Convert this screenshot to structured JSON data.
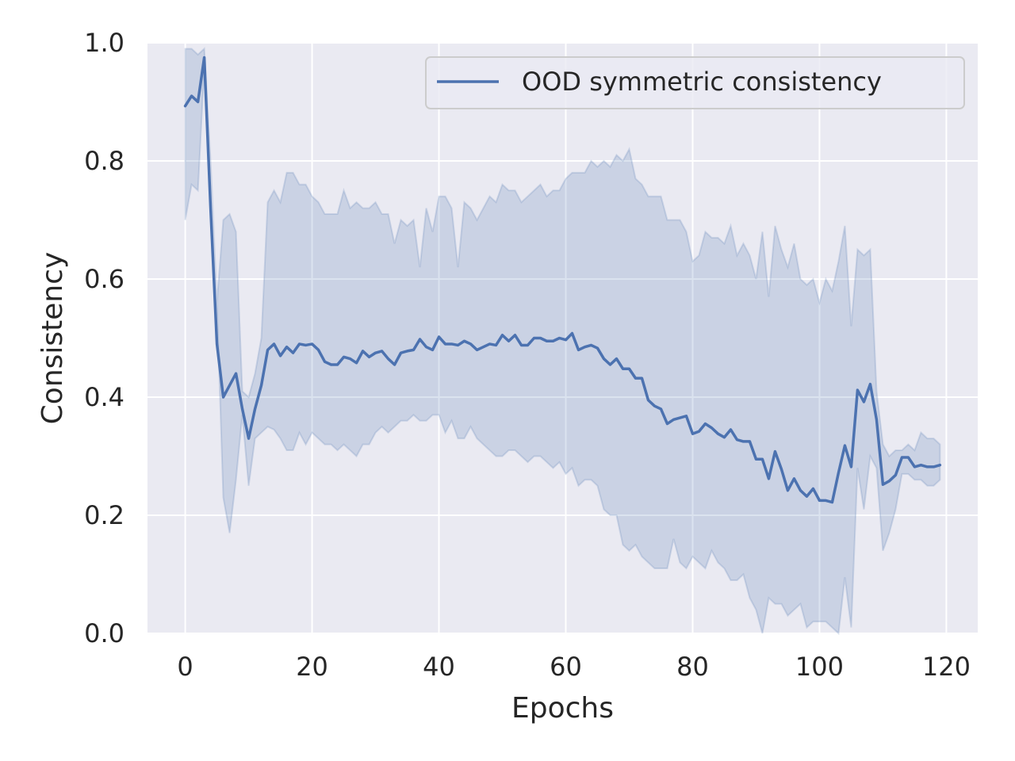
{
  "chart_data": {
    "type": "line",
    "xlabel": "Epochs",
    "ylabel": "Consistency",
    "xlim": [
      -5.95,
      124.95
    ],
    "ylim": [
      0.0,
      1.0
    ],
    "xticks": [
      0,
      20,
      40,
      60,
      80,
      100,
      120
    ],
    "yticks": [
      0.0,
      0.2,
      0.4,
      0.6,
      0.8,
      1.0
    ],
    "xtick_labels": [
      "0",
      "20",
      "40",
      "60",
      "80",
      "100",
      "120"
    ],
    "ytick_labels": [
      "0.0",
      "0.2",
      "0.4",
      "0.6",
      "0.8",
      "1.0"
    ],
    "grid": true,
    "legend_position": "top-right",
    "colors": {
      "background": "#eaeaf2",
      "grid": "#ffffff",
      "line": "#4c72b0",
      "band": "#4c72b0"
    },
    "series": [
      {
        "name": "OOD symmetric consistency",
        "x": [
          0,
          1,
          2,
          3,
          4,
          5,
          6,
          7,
          8,
          9,
          10,
          11,
          12,
          13,
          14,
          15,
          16,
          17,
          18,
          19,
          20,
          21,
          22,
          23,
          24,
          25,
          26,
          27,
          28,
          29,
          30,
          31,
          32,
          33,
          34,
          35,
          36,
          37,
          38,
          39,
          40,
          41,
          42,
          43,
          44,
          45,
          46,
          47,
          48,
          49,
          50,
          51,
          52,
          53,
          54,
          55,
          56,
          57,
          58,
          59,
          60,
          61,
          62,
          63,
          64,
          65,
          66,
          67,
          68,
          69,
          70,
          71,
          72,
          73,
          74,
          75,
          76,
          77,
          78,
          79,
          80,
          81,
          82,
          83,
          84,
          85,
          86,
          87,
          88,
          89,
          90,
          91,
          92,
          93,
          94,
          95,
          96,
          97,
          98,
          99,
          100,
          101,
          102,
          103,
          104,
          105,
          106,
          107,
          108,
          109,
          110,
          111,
          112,
          113,
          114,
          115,
          116,
          117,
          118,
          119
        ],
        "mean": [
          0.893,
          0.91,
          0.9,
          0.975,
          0.72,
          0.49,
          0.4,
          0.42,
          0.44,
          0.38,
          0.33,
          0.38,
          0.42,
          0.48,
          0.49,
          0.47,
          0.485,
          0.475,
          0.49,
          0.488,
          0.49,
          0.48,
          0.46,
          0.455,
          0.455,
          0.468,
          0.465,
          0.458,
          0.478,
          0.468,
          0.475,
          0.478,
          0.465,
          0.455,
          0.475,
          0.478,
          0.48,
          0.498,
          0.485,
          0.48,
          0.502,
          0.49,
          0.49,
          0.488,
          0.495,
          0.49,
          0.48,
          0.485,
          0.49,
          0.488,
          0.505,
          0.495,
          0.505,
          0.488,
          0.488,
          0.5,
          0.5,
          0.495,
          0.495,
          0.5,
          0.497,
          0.508,
          0.48,
          0.485,
          0.488,
          0.483,
          0.465,
          0.455,
          0.465,
          0.448,
          0.448,
          0.432,
          0.432,
          0.395,
          0.385,
          0.38,
          0.355,
          0.362,
          0.365,
          0.368,
          0.338,
          0.342,
          0.355,
          0.348,
          0.338,
          0.332,
          0.345,
          0.328,
          0.325,
          0.325,
          0.295,
          0.295,
          0.262,
          0.308,
          0.278,
          0.242,
          0.262,
          0.242,
          0.232,
          0.245,
          0.225,
          0.225,
          0.222,
          0.272,
          0.318,
          0.282,
          0.412,
          0.392,
          0.422,
          0.362,
          0.252,
          0.258,
          0.268,
          0.298,
          0.298,
          0.282,
          0.285,
          0.282,
          0.282,
          0.285
        ],
        "lower": [
          0.7,
          0.76,
          0.75,
          0.96,
          0.8,
          0.56,
          0.23,
          0.17,
          0.26,
          0.37,
          0.25,
          0.33,
          0.34,
          0.35,
          0.345,
          0.33,
          0.31,
          0.31,
          0.34,
          0.32,
          0.34,
          0.33,
          0.32,
          0.32,
          0.31,
          0.32,
          0.31,
          0.3,
          0.32,
          0.32,
          0.34,
          0.35,
          0.34,
          0.35,
          0.36,
          0.36,
          0.37,
          0.36,
          0.36,
          0.37,
          0.37,
          0.34,
          0.36,
          0.33,
          0.33,
          0.35,
          0.33,
          0.32,
          0.31,
          0.3,
          0.3,
          0.31,
          0.31,
          0.3,
          0.29,
          0.3,
          0.3,
          0.29,
          0.28,
          0.29,
          0.27,
          0.28,
          0.25,
          0.26,
          0.26,
          0.25,
          0.21,
          0.2,
          0.2,
          0.15,
          0.14,
          0.15,
          0.13,
          0.12,
          0.11,
          0.11,
          0.11,
          0.16,
          0.12,
          0.11,
          0.13,
          0.12,
          0.11,
          0.14,
          0.12,
          0.11,
          0.09,
          0.09,
          0.1,
          0.06,
          0.04,
          0.0,
          0.06,
          0.05,
          0.05,
          0.03,
          0.04,
          0.05,
          0.01,
          0.02,
          0.02,
          0.02,
          0.01,
          0.0,
          0.095,
          0.01,
          0.28,
          0.21,
          0.3,
          0.28,
          0.14,
          0.17,
          0.21,
          0.27,
          0.27,
          0.26,
          0.26,
          0.25,
          0.25,
          0.26
        ],
        "upper": [
          0.99,
          0.99,
          0.98,
          0.99,
          0.8,
          0.56,
          0.7,
          0.71,
          0.68,
          0.41,
          0.4,
          0.44,
          0.5,
          0.73,
          0.75,
          0.73,
          0.78,
          0.78,
          0.76,
          0.76,
          0.74,
          0.73,
          0.71,
          0.71,
          0.71,
          0.75,
          0.72,
          0.73,
          0.72,
          0.72,
          0.73,
          0.71,
          0.71,
          0.66,
          0.7,
          0.69,
          0.7,
          0.62,
          0.72,
          0.68,
          0.74,
          0.74,
          0.72,
          0.62,
          0.73,
          0.72,
          0.7,
          0.72,
          0.74,
          0.73,
          0.76,
          0.75,
          0.75,
          0.73,
          0.74,
          0.75,
          0.76,
          0.74,
          0.75,
          0.75,
          0.77,
          0.78,
          0.78,
          0.78,
          0.8,
          0.79,
          0.8,
          0.79,
          0.81,
          0.8,
          0.82,
          0.77,
          0.76,
          0.74,
          0.74,
          0.74,
          0.7,
          0.7,
          0.7,
          0.68,
          0.63,
          0.64,
          0.68,
          0.67,
          0.67,
          0.66,
          0.69,
          0.64,
          0.66,
          0.64,
          0.6,
          0.68,
          0.57,
          0.69,
          0.65,
          0.62,
          0.66,
          0.6,
          0.59,
          0.6,
          0.56,
          0.6,
          0.58,
          0.63,
          0.69,
          0.52,
          0.65,
          0.64,
          0.65,
          0.41,
          0.32,
          0.3,
          0.31,
          0.31,
          0.32,
          0.31,
          0.34,
          0.33,
          0.33,
          0.32
        ]
      }
    ]
  }
}
